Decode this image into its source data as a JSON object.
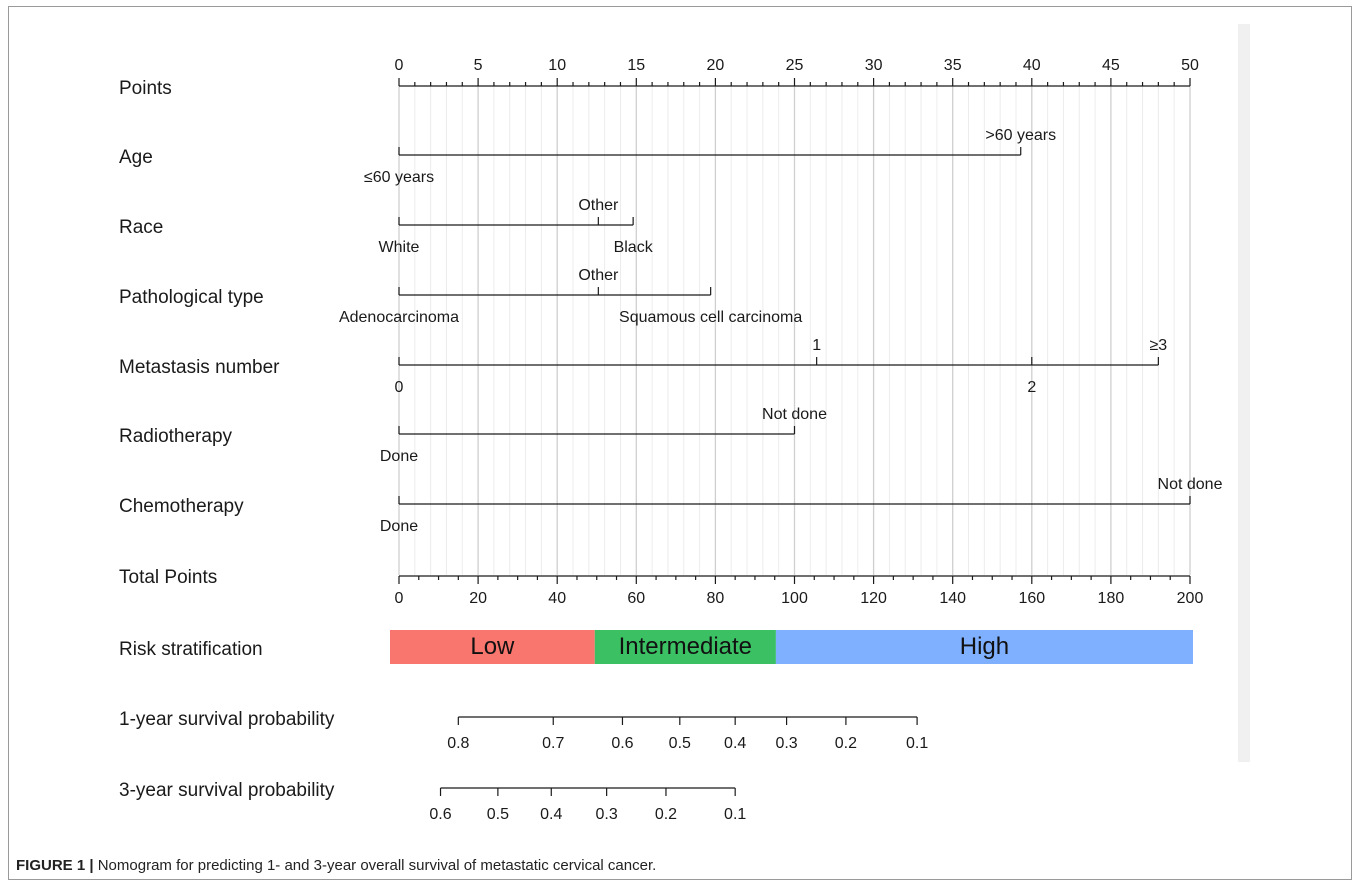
{
  "chart_data": {
    "type": "nomogram",
    "points_axis": {
      "label": "Points",
      "min": 0,
      "max": 50,
      "major_step": 5,
      "minor_step": 1,
      "tick_labels": [
        "0",
        "5",
        "10",
        "15",
        "20",
        "25",
        "30",
        "35",
        "40",
        "45",
        "50"
      ]
    },
    "variables": [
      {
        "name": "Age",
        "levels": [
          {
            "label": "≤60 years",
            "points": 0,
            "pos": "below"
          },
          {
            "label": ">60 years",
            "points": 39.3,
            "pos": "above"
          }
        ]
      },
      {
        "name": "Race",
        "levels": [
          {
            "label": "White",
            "points": 0,
            "pos": "below"
          },
          {
            "label": "Other",
            "points": 12.6,
            "pos": "above"
          },
          {
            "label": "Black",
            "points": 14.8,
            "pos": "below"
          }
        ]
      },
      {
        "name": "Pathological  type",
        "levels": [
          {
            "label": "Adenocarcinoma",
            "points": 0,
            "pos": "below"
          },
          {
            "label": "Other",
            "points": 12.6,
            "pos": "above"
          },
          {
            "label": "Squamous cell carcinoma",
            "points": 19.7,
            "pos": "below"
          }
        ]
      },
      {
        "name": "Metastasis  number",
        "levels": [
          {
            "label": "0",
            "points": 0,
            "pos": "below"
          },
          {
            "label": "1",
            "points": 26.4,
            "pos": "above"
          },
          {
            "label": "2",
            "points": 40,
            "pos": "below"
          },
          {
            "label": "≥3",
            "points": 48,
            "pos": "above"
          }
        ]
      },
      {
        "name": "Radiotherapy",
        "levels": [
          {
            "label": "Done",
            "points": 0,
            "pos": "below"
          },
          {
            "label": "Not done",
            "points": 25,
            "pos": "above"
          }
        ]
      },
      {
        "name": "Chemotherapy",
        "levels": [
          {
            "label": "Done",
            "points": 0,
            "pos": "below"
          },
          {
            "label": "Not done",
            "points": 50,
            "pos": "above"
          }
        ]
      }
    ],
    "total_points_axis": {
      "label": "Total Points",
      "min": 0,
      "max": 200,
      "major_step": 20,
      "minor_step": 5,
      "tick_labels": [
        "0",
        "20",
        "40",
        "60",
        "80",
        "100",
        "120",
        "140",
        "160",
        "180",
        "200"
      ]
    },
    "risk_stratification": {
      "label": "Risk  stratification",
      "segments": [
        {
          "label": "Low",
          "from": 0,
          "to": 49.5,
          "color": "#f8766d"
        },
        {
          "label": "Intermediate",
          "from": 49.5,
          "to": 95.3,
          "color": "#3cc064"
        },
        {
          "label": "High",
          "from": 95.3,
          "to": 200,
          "color": "#7fb0ff"
        }
      ]
    },
    "survival_axes": [
      {
        "label": "1-year survival probability",
        "ticks": [
          {
            "label": "0.8",
            "total_points": 15
          },
          {
            "label": "0.7",
            "total_points": 39
          },
          {
            "label": "0.6",
            "total_points": 56.5
          },
          {
            "label": "0.5",
            "total_points": 71
          },
          {
            "label": "0.4",
            "total_points": 85
          },
          {
            "label": "0.3",
            "total_points": 98
          },
          {
            "label": "0.2",
            "total_points": 113
          },
          {
            "label": "0.1",
            "total_points": 131
          }
        ]
      },
      {
        "label": "3-year survival probability",
        "ticks": [
          {
            "label": "0.6",
            "total_points": 10.5
          },
          {
            "label": "0.5",
            "total_points": 25
          },
          {
            "label": "0.4",
            "total_points": 38.5
          },
          {
            "label": "0.3",
            "total_points": 52.5
          },
          {
            "label": "0.2",
            "total_points": 67.5
          },
          {
            "label": "0.1",
            "total_points": 85
          }
        ]
      }
    ]
  },
  "caption": {
    "label": "FIGURE 1 |",
    "text": " Nomogram for predicting 1- and 3-year overall survival of metastatic cervical cancer."
  }
}
